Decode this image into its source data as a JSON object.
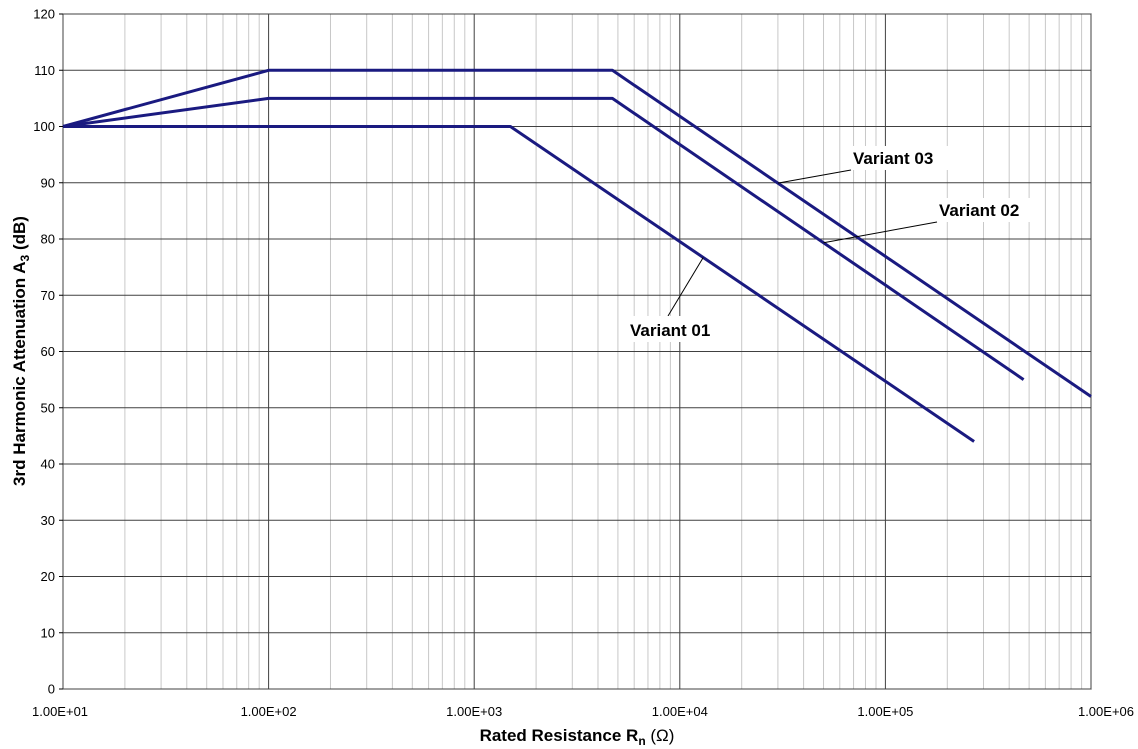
{
  "chart_data": {
    "type": "line",
    "x_scale": "log",
    "xlabel": "Rated Resistance  R",
    "xlabel_subscript": "n",
    "xlabel_unit": "(Ω)",
    "ylabel": "3rd Harmonic Attenuation  A",
    "ylabel_subscript": "3",
    "ylabel_unit": "(dB)",
    "xlim": [
      10,
      1000000
    ],
    "ylim": [
      0,
      120
    ],
    "x_tick_labels": [
      "1.00E+01",
      "1.00E+02",
      "1.00E+03",
      "1.00E+04",
      "1.00E+05",
      "1.00E+06"
    ],
    "x_tick_values": [
      10,
      100,
      1000,
      10000,
      100000,
      1000000
    ],
    "y_ticks": [
      0,
      10,
      20,
      30,
      40,
      50,
      60,
      70,
      80,
      90,
      100,
      110,
      120
    ],
    "grid": true,
    "line_color": "#1a1a80",
    "series": [
      {
        "name": "Variant 01",
        "x": [
          10,
          1500,
          270000
        ],
        "y": [
          100,
          100,
          44
        ]
      },
      {
        "name": "Variant 02",
        "x": [
          10,
          100,
          4700,
          470000
        ],
        "y": [
          100,
          105,
          105,
          55
        ]
      },
      {
        "name": "Variant 03",
        "x": [
          10,
          100,
          4700,
          1000000
        ],
        "y": [
          100,
          110,
          110,
          52
        ]
      }
    ],
    "annotations": [
      {
        "text": "Variant 03",
        "series": "Variant 03"
      },
      {
        "text": "Variant 02",
        "series": "Variant 02"
      },
      {
        "text": "Variant 01",
        "series": "Variant 01"
      }
    ]
  }
}
